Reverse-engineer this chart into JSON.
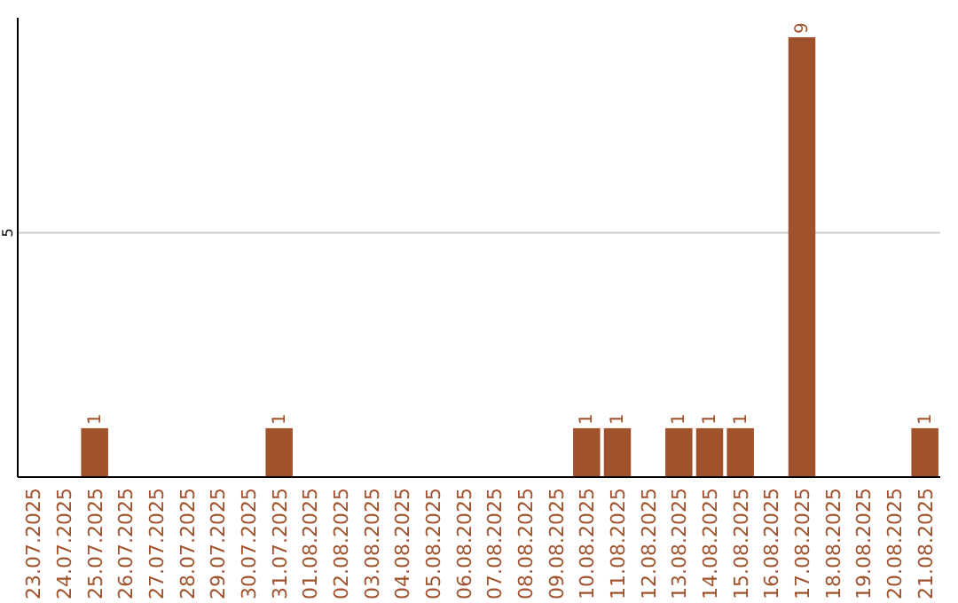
{
  "chart_data": {
    "type": "bar",
    "categories": [
      "23.07.2025",
      "24.07.2025",
      "25.07.2025",
      "26.07.2025",
      "27.07.2025",
      "28.07.2025",
      "29.07.2025",
      "30.07.2025",
      "31.07.2025",
      "01.08.2025",
      "02.08.2025",
      "03.08.2025",
      "04.08.2025",
      "05.08.2025",
      "06.08.2025",
      "07.08.2025",
      "08.08.2025",
      "09.08.2025",
      "10.08.2025",
      "11.08.2025",
      "12.08.2025",
      "13.08.2025",
      "14.08.2025",
      "15.08.2025",
      "16.08.2025",
      "17.08.2025",
      "18.08.2025",
      "19.08.2025",
      "20.08.2025",
      "21.08.2025"
    ],
    "values": [
      0,
      0,
      1,
      0,
      0,
      0,
      0,
      0,
      1,
      0,
      0,
      0,
      0,
      0,
      0,
      0,
      0,
      0,
      1,
      1,
      0,
      1,
      1,
      1,
      0,
      9,
      0,
      0,
      0,
      1
    ],
    "value_labels": [
      null,
      null,
      "1",
      null,
      null,
      null,
      null,
      null,
      "1",
      null,
      null,
      null,
      null,
      null,
      null,
      null,
      null,
      null,
      "1",
      "1",
      null,
      "1",
      "1",
      "1",
      null,
      "9",
      null,
      null,
      null,
      "1"
    ],
    "color": "#a0522d",
    "ylim": [
      0,
      9.4
    ],
    "yticks": [
      5
    ],
    "grid": "y"
  }
}
